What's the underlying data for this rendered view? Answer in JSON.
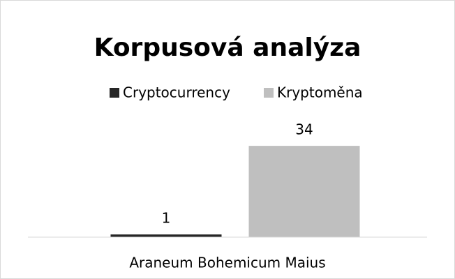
{
  "chart_data": {
    "type": "bar",
    "title": "Korpusová analýza",
    "categories": [
      "Araneum Bohemicum Maius"
    ],
    "series": [
      {
        "name": "Cryptocurrency",
        "color": "#262626",
        "values": [
          1
        ]
      },
      {
        "name": "Kryptoměna",
        "color": "#bfbfbf",
        "values": [
          34
        ]
      }
    ],
    "ylim": [
      0,
      40
    ],
    "legend": "top",
    "data_labels": true
  }
}
